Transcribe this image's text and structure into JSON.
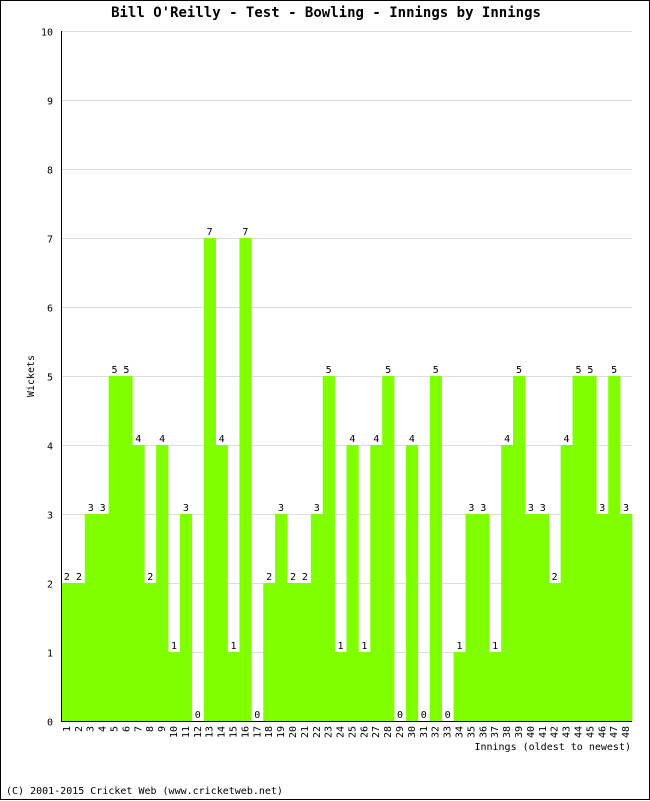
{
  "title": "Bill O'Reilly - Test - Bowling - Innings by Innings",
  "footer": "(C) 2001-2015 Cricket Web (www.cricketweb.net)",
  "chart_data": {
    "type": "bar",
    "title": "Bill O'Reilly - Test - Bowling - Innings by Innings",
    "xlabel": "Innings (oldest to newest)",
    "ylabel": "Wickets",
    "ylim": [
      0,
      10
    ],
    "yticks": [
      0,
      1,
      2,
      3,
      4,
      5,
      6,
      7,
      8,
      9,
      10
    ],
    "grid": true,
    "bar_color": "#80ff00",
    "categories": [
      "1",
      "2",
      "3",
      "4",
      "5",
      "6",
      "7",
      "8",
      "9",
      "10",
      "11",
      "12",
      "13",
      "14",
      "15",
      "16",
      "17",
      "18",
      "19",
      "20",
      "21",
      "22",
      "23",
      "24",
      "25",
      "26",
      "27",
      "28",
      "29",
      "30",
      "31",
      "32",
      "33",
      "34",
      "35",
      "36",
      "37",
      "38",
      "39",
      "40",
      "41",
      "42",
      "43",
      "44",
      "45",
      "46",
      "47",
      "48"
    ],
    "values": [
      2,
      2,
      3,
      3,
      5,
      5,
      4,
      2,
      4,
      1,
      3,
      0,
      7,
      4,
      1,
      7,
      0,
      2,
      3,
      2,
      2,
      3,
      5,
      1,
      4,
      1,
      4,
      5,
      0,
      4,
      0,
      5,
      0,
      1,
      3,
      3,
      1,
      4,
      5,
      3,
      3,
      2,
      4,
      5,
      5,
      3,
      5,
      3
    ]
  }
}
